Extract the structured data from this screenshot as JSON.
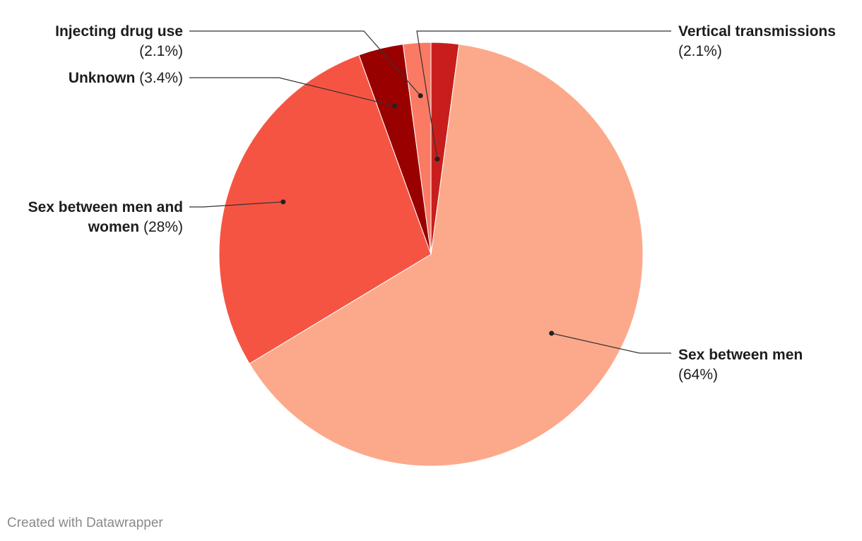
{
  "chart_data": {
    "type": "pie",
    "slices": [
      {
        "name": "Vertical transmissions",
        "value": 2.1,
        "label": "(2.1%)",
        "color": "#c71e1d"
      },
      {
        "name": "Sex between men",
        "value": 64,
        "label": "(64%)",
        "color": "#fca98b"
      },
      {
        "name": "Sex between men and women",
        "value": 28,
        "label": "(28%)",
        "color": "#f65443"
      },
      {
        "name": "Unknown",
        "value": 3.4,
        "label": "(3.4%)",
        "color": "#990000"
      },
      {
        "name": "Injecting drug use",
        "value": 2.1,
        "label": "(2.1%)",
        "color": "#fb7a64"
      }
    ],
    "start_angle_deg": 0,
    "direction": "clockwise",
    "legend": "none"
  },
  "credit": "Created with Datawrapper"
}
